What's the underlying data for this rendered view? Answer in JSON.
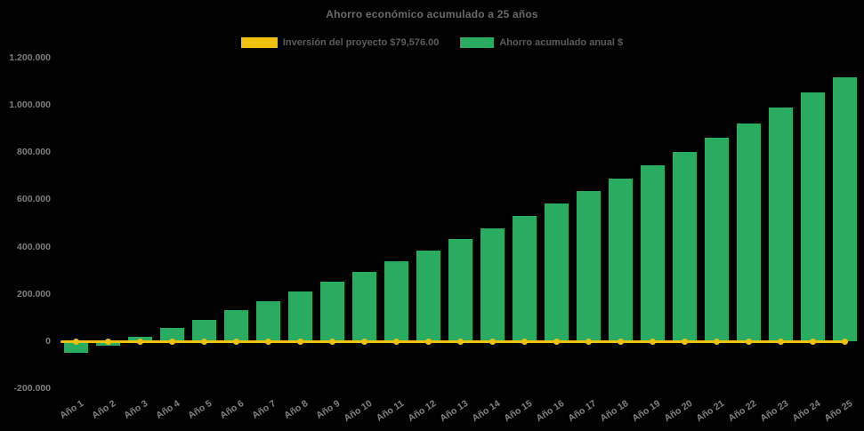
{
  "title": "Ahorro económico acumulado a 25 años",
  "legend": {
    "investment": {
      "label": "Inversión del proyecto $79,576.00",
      "color": "#f0c00f"
    },
    "savings": {
      "label": "Ahorro acumulado anual $",
      "color": "#29ab60"
    }
  },
  "chart_data": {
    "type": "bar",
    "title": "Ahorro económico acumulado a 25 años",
    "background": "#000000",
    "legend_position": "top",
    "grid": false,
    "x_label_rotation": -33,
    "xlabel": "",
    "ylabel": "",
    "ylim": [
      -200000,
      1200000
    ],
    "categories": [
      "Año 1",
      "Año 2",
      "Año 3",
      "Año 4",
      "Año 5",
      "Año 6",
      "Año 7",
      "Año 8",
      "Año 9",
      "Año 10",
      "Año 11",
      "Año 12",
      "Año 13",
      "Año 14",
      "Año 15",
      "Año 16",
      "Año 17",
      "Año 18",
      "Año 19",
      "Año 20",
      "Año 21",
      "Año 22",
      "Año 23",
      "Año 24",
      "Año 25"
    ],
    "series": [
      {
        "name": "Inversión del proyecto $79,576.00",
        "type": "line",
        "color": "#f0c00f",
        "values": [
          0,
          0,
          0,
          0,
          0,
          0,
          0,
          0,
          0,
          0,
          0,
          0,
          0,
          0,
          0,
          0,
          0,
          0,
          0,
          0,
          0,
          0,
          0,
          0,
          0
        ]
      },
      {
        "name": "Ahorro acumulado anual $",
        "type": "bar",
        "color": "#29ab60",
        "values": [
          -50000,
          -18000,
          20000,
          55000,
          92000,
          130000,
          170000,
          209000,
          251000,
          293000,
          337000,
          385000,
          432000,
          479000,
          530000,
          582000,
          636000,
          688000,
          744000,
          799000,
          860000,
          922000,
          987000,
          1052000,
          1118000
        ]
      }
    ],
    "y_ticks": [
      {
        "value": 1200000,
        "label": "1.200.000"
      },
      {
        "value": 1000000,
        "label": "1.000.000"
      },
      {
        "value": 800000,
        "label": "800.000"
      },
      {
        "value": 600000,
        "label": "600.000"
      },
      {
        "value": 400000,
        "label": "400.000"
      },
      {
        "value": 200000,
        "label": "200.000"
      },
      {
        "value": 0,
        "label": "0"
      },
      {
        "value": -200000,
        "label": "-200.000"
      }
    ]
  }
}
